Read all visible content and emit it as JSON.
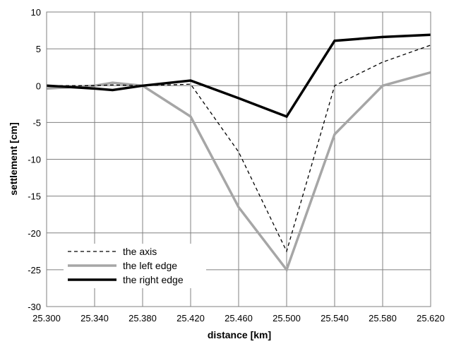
{
  "chart_data": {
    "type": "line",
    "xlabel": "distance [km]",
    "ylabel": "settlement [cm]",
    "x": [
      25.3,
      25.34,
      25.355,
      25.38,
      25.42,
      25.46,
      25.5,
      25.54,
      25.58,
      25.62
    ],
    "xticks": [
      "25.300",
      "25.340",
      "25.380",
      "25.420",
      "25.460",
      "25.500",
      "25.540",
      "25.580",
      "25.620"
    ],
    "xtick_values": [
      25.3,
      25.34,
      25.38,
      25.42,
      25.46,
      25.5,
      25.54,
      25.58,
      25.62
    ],
    "xlim": [
      25.3,
      25.62
    ],
    "ylim": [
      -30,
      10
    ],
    "yticks": [
      10,
      5,
      0,
      -5,
      -10,
      -15,
      -20,
      -25,
      -30
    ],
    "grid": true,
    "legend_position": "bottom-left",
    "series": [
      {
        "name": "the axis",
        "values": [
          0.0,
          0.0,
          0.1,
          0.0,
          0.2,
          -9.0,
          -22.5,
          0.0,
          3.2,
          5.5
        ],
        "color": "#000000",
        "style": "dashed"
      },
      {
        "name": "the left edge",
        "values": [
          -0.4,
          0.0,
          0.4,
          0.0,
          -4.2,
          -16.5,
          -25.0,
          -6.6,
          0.0,
          1.8
        ],
        "color": "#a6a6a6",
        "style": "solid"
      },
      {
        "name": "the right edge",
        "values": [
          0.0,
          -0.4,
          -0.6,
          0.0,
          0.7,
          -1.7,
          -4.2,
          6.1,
          6.6,
          6.9
        ],
        "color": "#000000",
        "style": "solid"
      }
    ]
  }
}
